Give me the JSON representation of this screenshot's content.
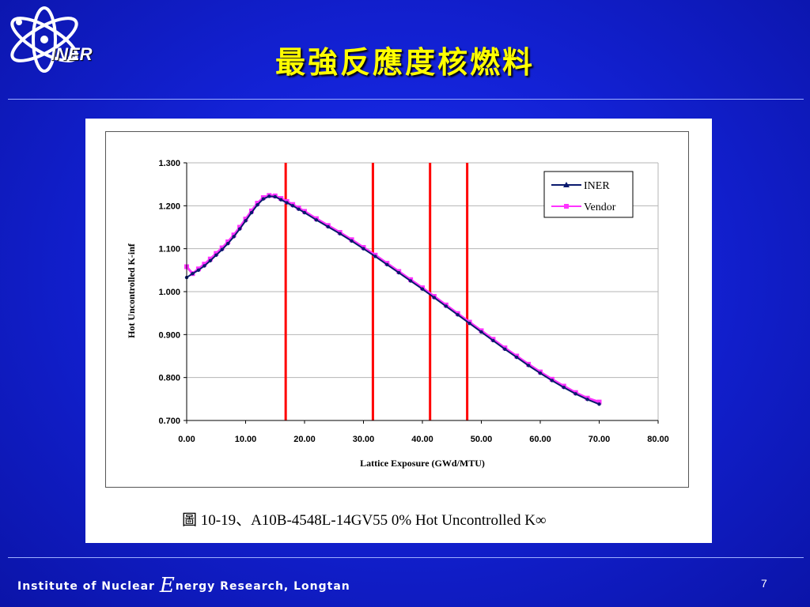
{
  "header": {
    "logo_text": "INER",
    "title": "最強反應度核燃料"
  },
  "figure": {
    "caption": "圖  10-19、A10B-4548L-14GV55 0% Hot Uncontrolled K∞"
  },
  "footer": {
    "org_before": "Institute of Nuclear ",
    "org_big_letter": "E",
    "org_after": "nergy Research, Longtan",
    "page_number": "7"
  },
  "colors": {
    "background": "#1322d6",
    "title": "#ffff00",
    "iner_series": "#0a1a6e",
    "vendor_series": "#ff33ff",
    "markers": "#ff0000"
  },
  "chart_data": {
    "type": "line",
    "xlabel": "Lattice Exposure (GWd/MTU)",
    "ylabel": "Hot Uncontrolled K-inf",
    "xlim": [
      0,
      80
    ],
    "ylim": [
      0.7,
      1.3
    ],
    "x_ticks": [
      "0.00",
      "10.00",
      "20.00",
      "30.00",
      "40.00",
      "50.00",
      "60.00",
      "70.00",
      "80.00"
    ],
    "y_ticks": [
      "0.700",
      "0.800",
      "0.900",
      "1.000",
      "1.100",
      "1.200",
      "1.300"
    ],
    "grid": "horizontal",
    "legend": "top-right",
    "series": [
      {
        "name": "INER",
        "color": "#0a1a6e",
        "x": [
          0,
          1,
          2,
          3,
          4,
          5,
          6,
          7,
          8,
          9,
          10,
          11,
          12,
          13,
          14,
          15,
          16,
          17,
          18,
          19,
          20,
          22,
          24,
          26,
          28,
          30,
          32,
          34,
          36,
          38,
          40,
          42,
          44,
          46,
          48,
          50,
          52,
          54,
          56,
          58,
          60,
          62,
          64,
          66,
          68,
          70
        ],
        "values": [
          1.033,
          1.042,
          1.05,
          1.06,
          1.072,
          1.085,
          1.098,
          1.112,
          1.128,
          1.146,
          1.165,
          1.184,
          1.202,
          1.216,
          1.222,
          1.221,
          1.214,
          1.207,
          1.2,
          1.192,
          1.184,
          1.167,
          1.151,
          1.135,
          1.118,
          1.1,
          1.082,
          1.063,
          1.044,
          1.025,
          1.006,
          0.986,
          0.966,
          0.946,
          0.926,
          0.906,
          0.886,
          0.866,
          0.847,
          0.828,
          0.81,
          0.793,
          0.777,
          0.762,
          0.749,
          0.738
        ]
      },
      {
        "name": "Vendor",
        "color": "#ff33ff",
        "x": [
          0,
          1,
          2,
          3,
          4,
          5,
          6,
          7,
          8,
          9,
          10,
          11,
          12,
          13,
          14,
          15,
          16,
          17,
          18,
          19,
          20,
          22,
          24,
          26,
          28,
          30,
          32,
          34,
          36,
          38,
          40,
          42,
          44,
          46,
          48,
          50,
          52,
          54,
          56,
          58,
          60,
          62,
          64,
          66,
          68,
          70
        ],
        "values": [
          1.058,
          1.042,
          1.053,
          1.064,
          1.076,
          1.089,
          1.102,
          1.116,
          1.132,
          1.15,
          1.169,
          1.188,
          1.206,
          1.219,
          1.224,
          1.223,
          1.217,
          1.21,
          1.203,
          1.195,
          1.187,
          1.17,
          1.154,
          1.138,
          1.121,
          1.103,
          1.085,
          1.066,
          1.047,
          1.028,
          1.009,
          0.989,
          0.969,
          0.949,
          0.929,
          0.909,
          0.889,
          0.869,
          0.85,
          0.831,
          0.813,
          0.796,
          0.78,
          0.765,
          0.752,
          0.743
        ]
      }
    ],
    "vertical_markers": [
      16.8,
      31.6,
      41.3,
      47.6
    ]
  }
}
